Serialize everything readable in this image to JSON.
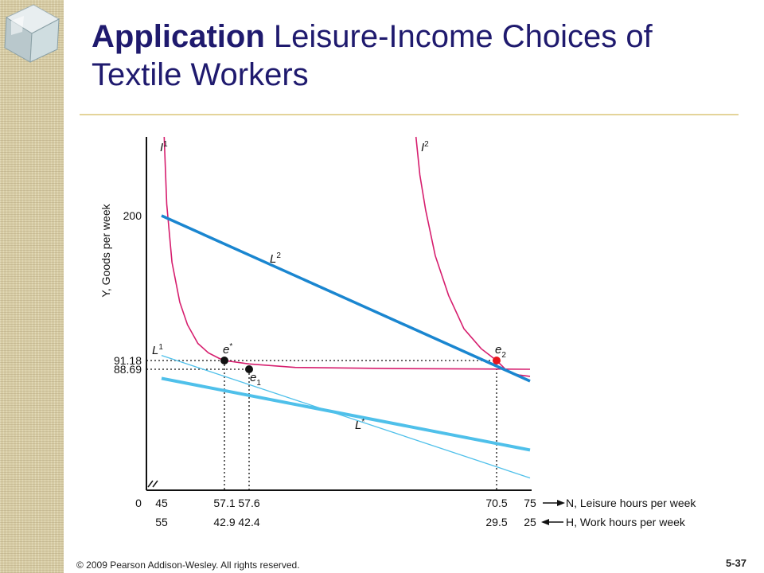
{
  "slide": {
    "title_bold": "Application",
    "title_rest": " Leisure-Income Choices of Textile Workers",
    "copyright": "© 2009 Pearson Addison-Wesley. All rights reserved.",
    "slide_number": "5-37"
  },
  "colors": {
    "title": "#1f1a6e",
    "indifference_curves": "#d61e6e",
    "budget_dark": "#1a86d0",
    "budget_light": "#4fc0ea",
    "point_dark": "#111111",
    "point_red": "#e8161d",
    "strip": "#d8cda6"
  },
  "chart_data": {
    "type": "line",
    "ylabel": "Y, Goods per week",
    "xlabel": "N, Leisure hours per week",
    "x2label": "H, Work hours per week",
    "x_ticks": [
      "45",
      "57.1",
      "57.6",
      "70.5",
      "75"
    ],
    "x_origin_label": "0",
    "x2_ticks": [
      "55",
      "42.9",
      "42.4",
      "29.5",
      "25"
    ],
    "y_ticks": [
      "200",
      "91.18",
      "88.69"
    ],
    "x_axis_break": true,
    "budget_lines": [
      {
        "name": "L",
        "sup": "1",
        "points": [
          [
            45,
            82
          ],
          [
            75,
            29.5
          ]
        ]
      },
      {
        "name": "L",
        "sup": "2",
        "points": [
          [
            45,
            200
          ],
          [
            75,
            80
          ]
        ]
      },
      {
        "name": "L",
        "sup": "*",
        "points": [
          [
            45,
            95
          ],
          [
            75,
            9
          ]
        ]
      }
    ],
    "indifference_curves": [
      {
        "name": "I",
        "sup": "1",
        "points": [
          [
            45.5,
            268
          ],
          [
            46,
            210
          ],
          [
            47,
            165
          ],
          [
            48.5,
            135
          ],
          [
            50,
            118
          ],
          [
            52,
            104
          ],
          [
            54,
            97
          ],
          [
            56,
            93
          ],
          [
            57.1,
            91.18
          ],
          [
            57.6,
            90.2
          ],
          [
            60,
            89.2
          ],
          [
            65,
            88.9
          ],
          [
            70,
            88.75
          ],
          [
            75,
            88.7
          ]
        ]
      },
      {
        "name": "I",
        "sup": "2",
        "points": [
          [
            66.3,
            268
          ],
          [
            66.5,
            235
          ],
          [
            66.8,
            205
          ],
          [
            67.3,
            170
          ],
          [
            68,
            140
          ],
          [
            68.8,
            115
          ],
          [
            69.7,
            100
          ],
          [
            70.5,
            91.18
          ],
          [
            72,
            87
          ],
          [
            73.5,
            84.5
          ],
          [
            75,
            83.5
          ]
        ]
      }
    ],
    "points": [
      {
        "name": "e",
        "sup": "*",
        "x": 57.1,
        "y": 91.18
      },
      {
        "name": "e",
        "sub": "1",
        "x": 57.6,
        "y": 88.69
      },
      {
        "name": "e",
        "sub": "2",
        "x": 70.5,
        "y": 91.18
      }
    ]
  }
}
